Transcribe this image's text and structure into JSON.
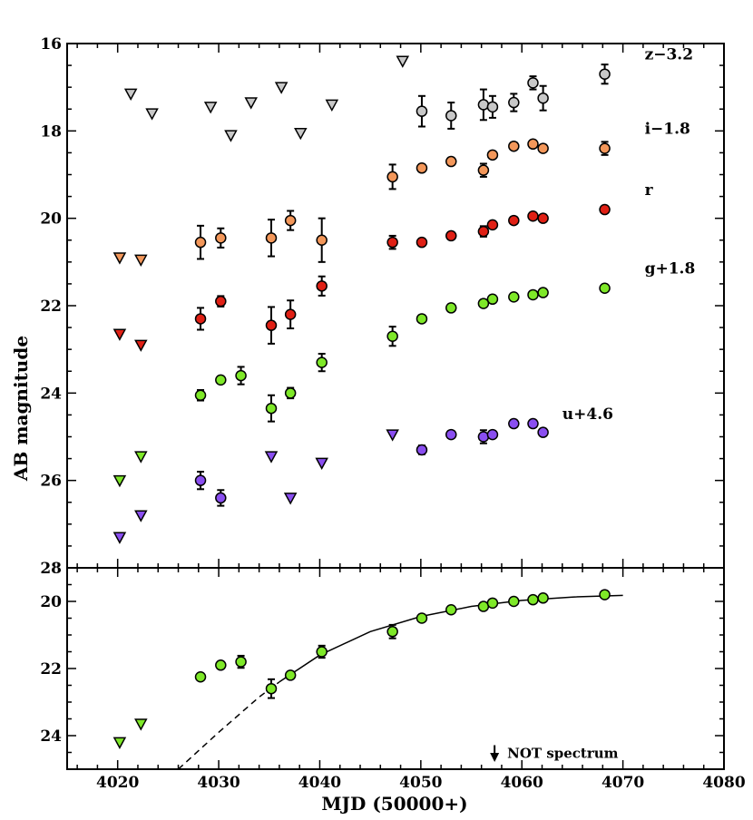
{
  "chart_data": [
    {
      "type": "scatter",
      "panel": "top",
      "xlabel": "",
      "ylabel": "AB magnitude",
      "xlim": [
        4015,
        4080
      ],
      "ylim": [
        28,
        16
      ],
      "y_inverted": true,
      "x_ticks": [
        "4020",
        "4030",
        "4040",
        "4050",
        "4060",
        "4070",
        "4080"
      ],
      "y_ticks": [
        "16",
        "18",
        "20",
        "22",
        "24",
        "26",
        "28"
      ],
      "series": [
        {
          "name": "z−3.2",
          "color": "#c8c8c8",
          "detections": [
            {
              "x": 4050.1,
              "y": 17.55,
              "err": 0.35
            },
            {
              "x": 4053.0,
              "y": 17.65,
              "err": 0.3
            },
            {
              "x": 4056.2,
              "y": 17.4,
              "err": 0.35
            },
            {
              "x": 4057.1,
              "y": 17.45,
              "err": 0.25
            },
            {
              "x": 4059.2,
              "y": 17.35,
              "err": 0.2
            },
            {
              "x": 4061.1,
              "y": 16.9,
              "err": 0.15
            },
            {
              "x": 4062.1,
              "y": 17.25,
              "err": 0.28
            }
          ],
          "upper_limits": [
            {
              "x": 4021.3,
              "y": 17.15
            },
            {
              "x": 4023.4,
              "y": 17.6
            },
            {
              "x": 4029.2,
              "y": 17.45
            },
            {
              "x": 4031.2,
              "y": 18.1
            },
            {
              "x": 4033.2,
              "y": 17.35
            },
            {
              "x": 4036.2,
              "y": 17.0
            },
            {
              "x": 4038.1,
              "y": 18.05
            },
            {
              "x": 4041.2,
              "y": 17.4
            },
            {
              "x": 4048.2,
              "y": 16.4
            }
          ],
          "legend_point": {
            "x": 4068.2,
            "y": 16.7,
            "err": 0.22
          }
        },
        {
          "name": "i−1.8",
          "color": "#f3975a",
          "detections": [
            {
              "x": 4028.2,
              "y": 20.55,
              "err": 0.38
            },
            {
              "x": 4030.2,
              "y": 20.45,
              "err": 0.22
            },
            {
              "x": 4035.2,
              "y": 20.45,
              "err": 0.42
            },
            {
              "x": 4037.1,
              "y": 20.05,
              "err": 0.22
            },
            {
              "x": 4040.2,
              "y": 20.5,
              "err": 0.5
            },
            {
              "x": 4047.2,
              "y": 19.05,
              "err": 0.28
            },
            {
              "x": 4050.1,
              "y": 18.85,
              "err": 0.08
            },
            {
              "x": 4053.0,
              "y": 18.7,
              "err": 0.08
            },
            {
              "x": 4056.2,
              "y": 18.9,
              "err": 0.15
            },
            {
              "x": 4057.1,
              "y": 18.55,
              "err": 0.08
            },
            {
              "x": 4059.2,
              "y": 18.35,
              "err": 0.08
            },
            {
              "x": 4061.1,
              "y": 18.3,
              "err": 0.08
            },
            {
              "x": 4062.1,
              "y": 18.4,
              "err": 0.08
            }
          ],
          "upper_limits": [
            {
              "x": 4020.2,
              "y": 20.9
            },
            {
              "x": 4022.3,
              "y": 20.95
            }
          ],
          "legend_point": {
            "x": 4068.2,
            "y": 18.4,
            "err": 0.15
          }
        },
        {
          "name": "r",
          "color": "#e02015",
          "detections": [
            {
              "x": 4028.2,
              "y": 22.3,
              "err": 0.25
            },
            {
              "x": 4030.2,
              "y": 21.9,
              "err": 0.12
            },
            {
              "x": 4035.2,
              "y": 22.45,
              "err": 0.42
            },
            {
              "x": 4037.1,
              "y": 22.2,
              "err": 0.32
            },
            {
              "x": 4040.2,
              "y": 21.55,
              "err": 0.22
            },
            {
              "x": 4047.2,
              "y": 20.55,
              "err": 0.15
            },
            {
              "x": 4050.1,
              "y": 20.55,
              "err": 0.08
            },
            {
              "x": 4053.0,
              "y": 20.4,
              "err": 0.08
            },
            {
              "x": 4056.2,
              "y": 20.3,
              "err": 0.12
            },
            {
              "x": 4057.1,
              "y": 20.15,
              "err": 0.08
            },
            {
              "x": 4059.2,
              "y": 20.05,
              "err": 0.08
            },
            {
              "x": 4061.1,
              "y": 19.95,
              "err": 0.08
            },
            {
              "x": 4062.1,
              "y": 20.0,
              "err": 0.08
            }
          ],
          "upper_limits": [
            {
              "x": 4020.2,
              "y": 22.65
            },
            {
              "x": 4022.3,
              "y": 22.9
            }
          ],
          "legend_point": {
            "x": 4068.2,
            "y": 19.8,
            "err": 0
          }
        },
        {
          "name": "g+1.8",
          "color": "#7ee828",
          "detections": [
            {
              "x": 4028.2,
              "y": 24.05,
              "err": 0.12
            },
            {
              "x": 4030.2,
              "y": 23.7,
              "err": 0.08
            },
            {
              "x": 4032.2,
              "y": 23.6,
              "err": 0.2
            },
            {
              "x": 4035.2,
              "y": 24.35,
              "err": 0.3
            },
            {
              "x": 4037.1,
              "y": 24.0,
              "err": 0.12
            },
            {
              "x": 4040.2,
              "y": 23.3,
              "err": 0.2
            },
            {
              "x": 4047.2,
              "y": 22.7,
              "err": 0.22
            },
            {
              "x": 4050.1,
              "y": 22.3,
              "err": 0.08
            },
            {
              "x": 4053.0,
              "y": 22.05,
              "err": 0.08
            },
            {
              "x": 4056.2,
              "y": 21.95,
              "err": 0.08
            },
            {
              "x": 4057.1,
              "y": 21.85,
              "err": 0.08
            },
            {
              "x": 4059.2,
              "y": 21.8,
              "err": 0.08
            },
            {
              "x": 4061.1,
              "y": 21.75,
              "err": 0.08
            },
            {
              "x": 4062.1,
              "y": 21.7,
              "err": 0.08
            }
          ],
          "upper_limits": [
            {
              "x": 4020.2,
              "y": 26.0
            },
            {
              "x": 4022.3,
              "y": 25.45
            }
          ],
          "legend_point": {
            "x": 4068.2,
            "y": 21.6,
            "err": 0
          }
        },
        {
          "name": "u+4.6",
          "color": "#8a4ef0",
          "detections": [
            {
              "x": 4028.2,
              "y": 26.0,
              "err": 0.2
            },
            {
              "x": 4030.2,
              "y": 26.4,
              "err": 0.18
            },
            {
              "x": 4050.1,
              "y": 25.3,
              "err": 0.1
            },
            {
              "x": 4053.0,
              "y": 24.95,
              "err": 0.08
            },
            {
              "x": 4056.2,
              "y": 25.0,
              "err": 0.15
            },
            {
              "x": 4057.1,
              "y": 24.95,
              "err": 0.08
            },
            {
              "x": 4059.2,
              "y": 24.7,
              "err": 0.08
            },
            {
              "x": 4061.1,
              "y": 24.7,
              "err": 0.08
            },
            {
              "x": 4062.1,
              "y": 24.9,
              "err": 0.08
            }
          ],
          "upper_limits": [
            {
              "x": 4020.2,
              "y": 27.3
            },
            {
              "x": 4022.3,
              "y": 26.8
            },
            {
              "x": 4035.2,
              "y": 25.45
            },
            {
              "x": 4037.1,
              "y": 26.4
            },
            {
              "x": 4040.2,
              "y": 25.6
            },
            {
              "x": 4047.2,
              "y": 24.95
            }
          ]
        }
      ]
    },
    {
      "type": "scatter",
      "panel": "bottom",
      "xlabel": "MJD (50000+)",
      "ylabel": "",
      "xlim": [
        4015,
        4080
      ],
      "ylim": [
        25,
        19
      ],
      "y_inverted": true,
      "x_ticks": [
        "4020",
        "4030",
        "4040",
        "4050",
        "4060",
        "4070",
        "4080"
      ],
      "y_ticks": [
        "20",
        "22",
        "24"
      ],
      "series": [
        {
          "name": "",
          "color": "#7ee828",
          "detections": [
            {
              "x": 4028.2,
              "y": 22.25,
              "err": 0.08
            },
            {
              "x": 4030.2,
              "y": 21.9,
              "err": 0.08
            },
            {
              "x": 4032.2,
              "y": 21.8,
              "err": 0.18
            },
            {
              "x": 4035.2,
              "y": 22.6,
              "err": 0.28
            },
            {
              "x": 4037.1,
              "y": 22.2,
              "err": 0.1
            },
            {
              "x": 4040.2,
              "y": 21.5,
              "err": 0.18
            },
            {
              "x": 4047.2,
              "y": 20.9,
              "err": 0.2
            },
            {
              "x": 4050.1,
              "y": 20.5,
              "err": 0.08
            },
            {
              "x": 4053.0,
              "y": 20.25,
              "err": 0.08
            },
            {
              "x": 4056.2,
              "y": 20.15,
              "err": 0.08
            },
            {
              "x": 4057.1,
              "y": 20.05,
              "err": 0.08
            },
            {
              "x": 4059.2,
              "y": 20.0,
              "err": 0.08
            },
            {
              "x": 4061.1,
              "y": 19.95,
              "err": 0.08
            },
            {
              "x": 4062.1,
              "y": 19.9,
              "err": 0.08
            },
            {
              "x": 4068.2,
              "y": 19.8,
              "err": 0.06
            }
          ],
          "upper_limits": [
            {
              "x": 4020.2,
              "y": 24.2
            },
            {
              "x": 4022.3,
              "y": 23.65
            }
          ]
        }
      ],
      "fit_curve": {
        "solid_x_range": [
          4036,
          4070
        ],
        "dashed_x_range": [
          4026,
          4036
        ],
        "points": [
          {
            "x": 4026,
            "y": 25.0
          },
          {
            "x": 4030,
            "y": 23.9
          },
          {
            "x": 4034,
            "y": 22.85
          },
          {
            "x": 4036,
            "y": 22.4
          },
          {
            "x": 4040,
            "y": 21.6
          },
          {
            "x": 4045,
            "y": 20.9
          },
          {
            "x": 4050,
            "y": 20.45
          },
          {
            "x": 4055,
            "y": 20.15
          },
          {
            "x": 4060,
            "y": 19.97
          },
          {
            "x": 4065,
            "y": 19.87
          },
          {
            "x": 4070,
            "y": 19.82
          }
        ]
      },
      "annotation": {
        "text": "NOT spectrum",
        "arrow_x": 4057.3,
        "arrow_from_y": 24.5,
        "arrow_to_y": 25.0
      }
    }
  ]
}
